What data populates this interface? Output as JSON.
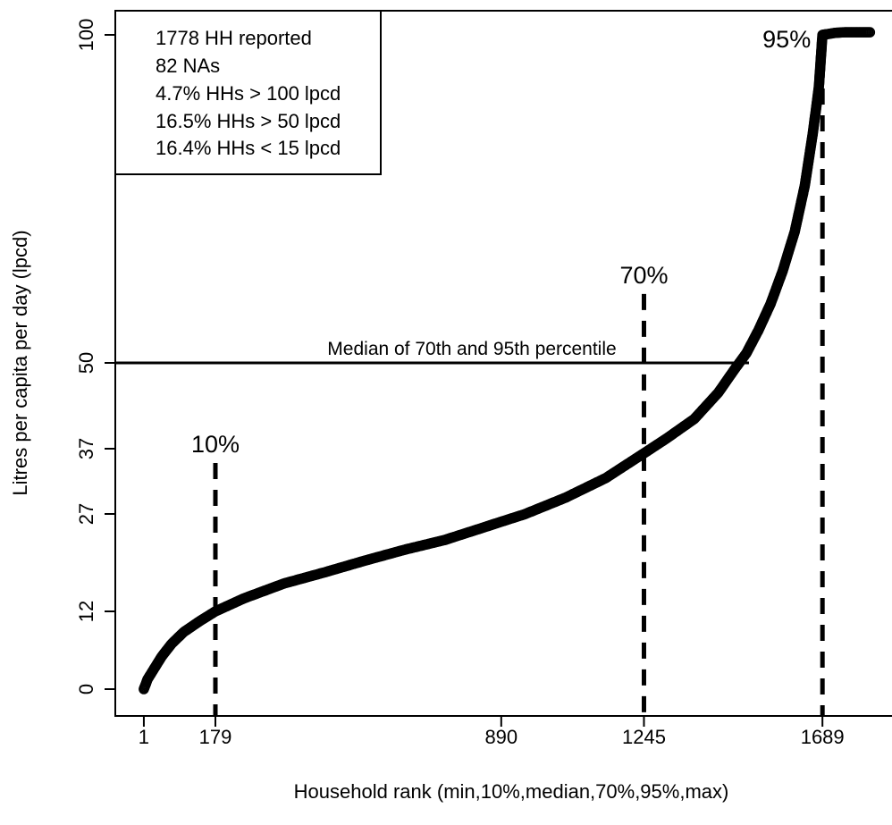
{
  "chart_data": {
    "type": "scatter",
    "xlabel": "Household rank (min,10%,median,70%,95%,max)",
    "ylabel": "Litres per capita per day (lpcd)",
    "xlim": [
      -70,
      1862
    ],
    "ylim": [
      -4,
      104
    ],
    "x_ticks": [
      1,
      179,
      890,
      1245,
      1689
    ],
    "y_ticks": [
      0,
      12,
      27,
      37,
      50,
      100
    ],
    "legend": {
      "position": "top-left",
      "lines": [
        "1778 HH reported",
        "82 NAs",
        "4.7% HHs > 100 lpcd",
        "16.5% HHs > 50 lpcd",
        "16.4% HHs < 15 lpcd"
      ]
    },
    "reference_lines": {
      "horizontal": {
        "y": 50,
        "label": "Median of 70th and 95th percentile"
      },
      "vertical": [
        {
          "x": 179,
          "label": "10%",
          "top_y": 34.8
        },
        {
          "x": 1245,
          "label": "70%",
          "top_y": 60.5
        },
        {
          "x": 1689,
          "label": "95%",
          "top_y": 100
        }
      ]
    },
    "curve_points": [
      [
        1,
        0
      ],
      [
        10,
        1.5
      ],
      [
        25,
        3
      ],
      [
        45,
        5
      ],
      [
        70,
        7
      ],
      [
        100,
        8.8
      ],
      [
        140,
        10.5
      ],
      [
        179,
        12
      ],
      [
        250,
        14
      ],
      [
        350,
        16.3
      ],
      [
        450,
        18
      ],
      [
        550,
        19.8
      ],
      [
        650,
        21.5
      ],
      [
        750,
        23
      ],
      [
        850,
        25
      ],
      [
        890,
        25.8
      ],
      [
        950,
        27
      ],
      [
        1050,
        29.5
      ],
      [
        1150,
        32.5
      ],
      [
        1245,
        36.3
      ],
      [
        1300,
        38.5
      ],
      [
        1370,
        41.5
      ],
      [
        1430,
        45.5
      ],
      [
        1470,
        49
      ],
      [
        1500,
        51.5
      ],
      [
        1530,
        55
      ],
      [
        1560,
        59
      ],
      [
        1590,
        64
      ],
      [
        1620,
        70
      ],
      [
        1645,
        77
      ],
      [
        1665,
        85
      ],
      [
        1680,
        92
      ],
      [
        1689,
        100
      ],
      [
        1700,
        100.1
      ],
      [
        1720,
        100.3
      ],
      [
        1745,
        100.4
      ],
      [
        1780,
        100.4
      ],
      [
        1807,
        100.4
      ]
    ]
  }
}
